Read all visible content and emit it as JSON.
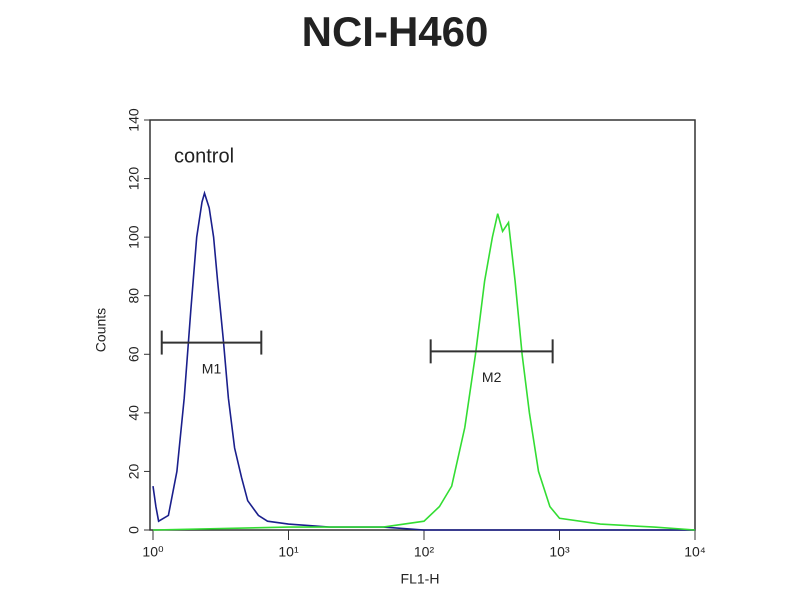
{
  "chart_data": {
    "type": "line",
    "title": "NCI-H460",
    "x_label": "FL1-H",
    "y_label": "Counts",
    "annotation": "control",
    "x_scale": "log",
    "xlim": [
      1,
      10000
    ],
    "ylim": [
      0,
      140
    ],
    "xticks": [
      {
        "value": 1,
        "label": "10⁰"
      },
      {
        "value": 10,
        "label": "10¹"
      },
      {
        "value": 100,
        "label": "10²"
      },
      {
        "value": 1000,
        "label": "10³"
      },
      {
        "value": 10000,
        "label": "10⁴"
      }
    ],
    "yticks": [
      0,
      20,
      40,
      60,
      80,
      100,
      120,
      140
    ],
    "series": [
      {
        "color": "#1a1f8c",
        "x": [
          1.0,
          1.05,
          1.1,
          1.3,
          1.5,
          1.7,
          1.9,
          2.1,
          2.3,
          2.4,
          2.6,
          2.8,
          3.0,
          3.3,
          3.6,
          4.0,
          4.5,
          5,
          6,
          7,
          10,
          20,
          50,
          100,
          1000,
          10000
        ],
        "values": [
          15,
          8,
          3,
          5,
          20,
          45,
          75,
          100,
          112,
          115,
          110,
          100,
          85,
          65,
          45,
          28,
          18,
          10,
          5,
          3,
          2,
          1,
          1,
          0,
          0,
          0
        ]
      },
      {
        "color": "#33dd33",
        "x": [
          1,
          10,
          50,
          100,
          130,
          160,
          200,
          240,
          280,
          320,
          350,
          380,
          420,
          470,
          530,
          600,
          700,
          850,
          1000,
          2000,
          5000,
          10000
        ],
        "values": [
          0,
          1,
          1,
          3,
          8,
          15,
          35,
          60,
          85,
          100,
          108,
          102,
          105,
          85,
          60,
          40,
          20,
          8,
          4,
          2,
          1,
          0
        ]
      }
    ],
    "markers": [
      {
        "label": "M1",
        "range": [
          1.16,
          6.3
        ],
        "y": 64
      },
      {
        "label": "M2",
        "range": [
          112,
          890
        ],
        "y": 61
      }
    ]
  }
}
